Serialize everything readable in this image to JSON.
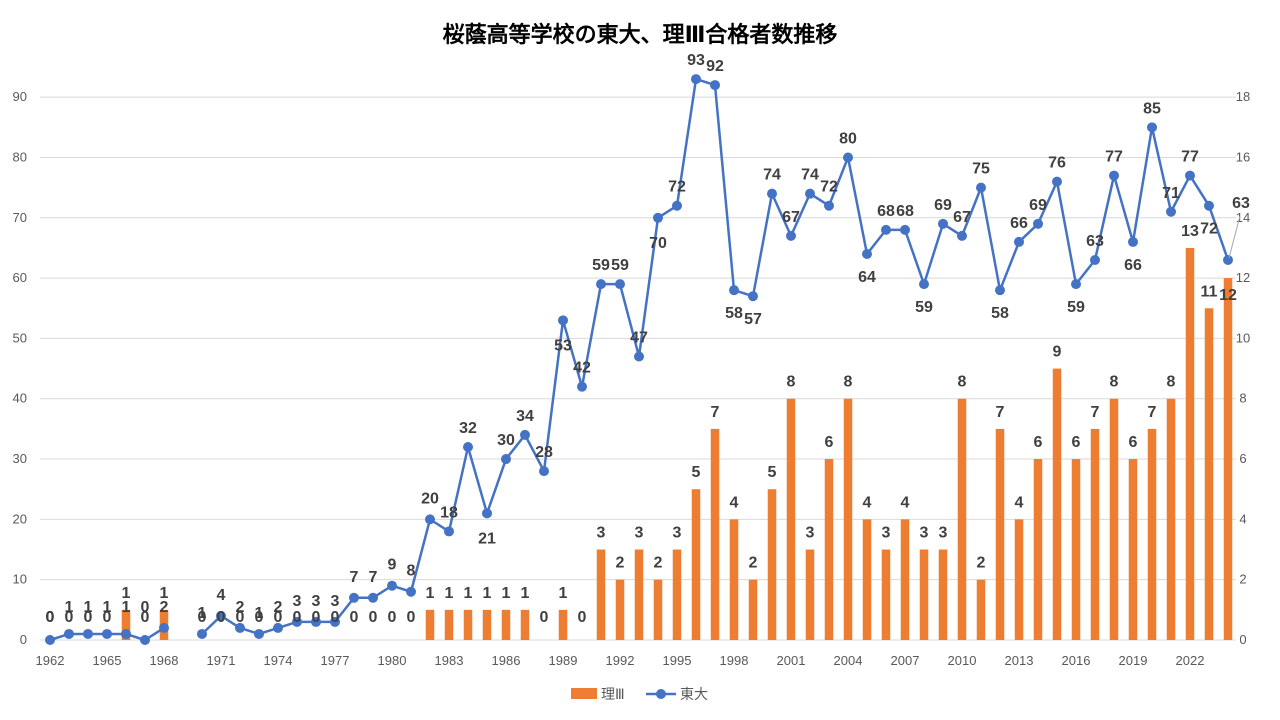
{
  "chart_data": {
    "type": "bar+line",
    "title": "桜蔭高等学校の東大、理Ⅲ合格者数推移",
    "colors": {
      "bar": "#ED7D31",
      "line": "#4472C4",
      "grid": "#d9d9d9"
    },
    "left_axis": {
      "min": 0,
      "max": 95,
      "ticks": [
        0,
        10,
        20,
        30,
        40,
        50,
        60,
        70,
        80,
        90
      ]
    },
    "right_axis": {
      "min": 0,
      "max": 19,
      "ticks": [
        0,
        2,
        4,
        6,
        8,
        10,
        12,
        14,
        16,
        18
      ]
    },
    "x_tick_labels": [
      "1962",
      "1965",
      "1968",
      "1971",
      "1974",
      "1977",
      "1980",
      "1983",
      "1986",
      "1989",
      "1992",
      "1995",
      "1998",
      "2001",
      "2004",
      "2007",
      "2010",
      "2013",
      "2016",
      "2019",
      "2022"
    ],
    "years": [
      1962,
      1963,
      1964,
      1965,
      1966,
      1967,
      1968,
      1969,
      1970,
      1971,
      1972,
      1973,
      1974,
      1975,
      1976,
      1977,
      1978,
      1979,
      1980,
      1981,
      1982,
      1983,
      1984,
      1985,
      1986,
      1987,
      1988,
      1989,
      1990,
      1991,
      1992,
      1993,
      1994,
      1995,
      1996,
      1997,
      1998,
      1999,
      2000,
      2001,
      2002,
      2003,
      2004,
      2005,
      2006,
      2007,
      2008,
      2009,
      2010,
      2011,
      2012,
      2013,
      2014,
      2015,
      2016,
      2017,
      2018,
      2019,
      2020,
      2021,
      2022,
      2023,
      2024
    ],
    "series": [
      {
        "name": "理Ⅲ",
        "type": "bar",
        "axis": "right",
        "values": [
          0,
          0,
          0,
          0,
          1,
          0,
          1,
          null,
          0,
          0,
          0,
          0,
          0,
          0,
          0,
          0,
          0,
          0,
          0,
          0,
          1,
          1,
          1,
          1,
          1,
          1,
          0,
          1,
          0,
          3,
          2,
          3,
          2,
          3,
          5,
          7,
          4,
          2,
          5,
          8,
          3,
          6,
          8,
          4,
          3,
          4,
          3,
          3,
          8,
          2,
          7,
          4,
          6,
          9,
          6,
          7,
          8,
          6,
          7,
          8,
          13,
          11,
          12
        ]
      },
      {
        "name": "東大",
        "type": "line",
        "axis": "left",
        "values": [
          0,
          1,
          1,
          1,
          1,
          0,
          2,
          null,
          1,
          4,
          2,
          1,
          2,
          3,
          3,
          3,
          7,
          7,
          9,
          8,
          20,
          18,
          32,
          21,
          30,
          34,
          28,
          53,
          42,
          59,
          59,
          47,
          70,
          72,
          93,
          92,
          58,
          57,
          74,
          67,
          74,
          72,
          80,
          64,
          68,
          68,
          59,
          69,
          67,
          75,
          58,
          66,
          69,
          76,
          59,
          63,
          77,
          66,
          85,
          71,
          77,
          72,
          63
        ]
      }
    ],
    "legend": [
      "理Ⅲ",
      "東大"
    ]
  }
}
